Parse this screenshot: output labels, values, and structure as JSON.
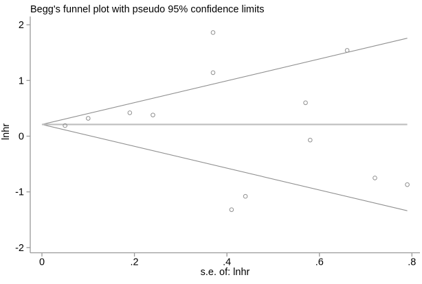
{
  "chart_data": {
    "type": "scatter",
    "title": "Begg's funnel plot with pseudo 95% confidence limits",
    "xlabel": "s.e. of: lnhr",
    "ylabel": "lnhr",
    "xlim": [
      0,
      0.8
    ],
    "ylim": [
      -2,
      2
    ],
    "grid": false,
    "legend_position": "none",
    "x_ticks": [
      {
        "value": 0,
        "label": "0"
      },
      {
        "value": 0.2,
        "label": ".2"
      },
      {
        "value": 0.4,
        "label": ".4"
      },
      {
        "value": 0.6,
        "label": ".6"
      },
      {
        "value": 0.8,
        "label": ".8"
      }
    ],
    "y_ticks": [
      {
        "value": 2,
        "label": "2"
      },
      {
        "value": 1,
        "label": "1"
      },
      {
        "value": 0,
        "label": "0"
      },
      {
        "value": -1,
        "label": "-1"
      },
      {
        "value": -2,
        "label": "-2"
      }
    ],
    "points": [
      {
        "se": 0.05,
        "lnhr": 0.19
      },
      {
        "se": 0.1,
        "lnhr": 0.32
      },
      {
        "se": 0.19,
        "lnhr": 0.42
      },
      {
        "se": 0.24,
        "lnhr": 0.38
      },
      {
        "se": 0.37,
        "lnhr": 1.86
      },
      {
        "se": 0.37,
        "lnhr": 1.14
      },
      {
        "se": 0.41,
        "lnhr": -1.32
      },
      {
        "se": 0.44,
        "lnhr": -1.08
      },
      {
        "se": 0.57,
        "lnhr": 0.6
      },
      {
        "se": 0.58,
        "lnhr": -0.07
      },
      {
        "se": 0.66,
        "lnhr": 1.54
      },
      {
        "se": 0.72,
        "lnhr": -0.75
      },
      {
        "se": 0.79,
        "lnhr": -0.87
      }
    ],
    "funnel": {
      "center_lnhr": 0.21,
      "z": 1.96,
      "se_min": 0,
      "se_max": 0.79
    },
    "colors": {
      "marker_stroke": "#8f8f8f",
      "ci_line": "#8f8f8f",
      "center_line": "#bdbdbd",
      "axis": "#999999",
      "text": "#000000",
      "background": "#ffffff"
    }
  }
}
